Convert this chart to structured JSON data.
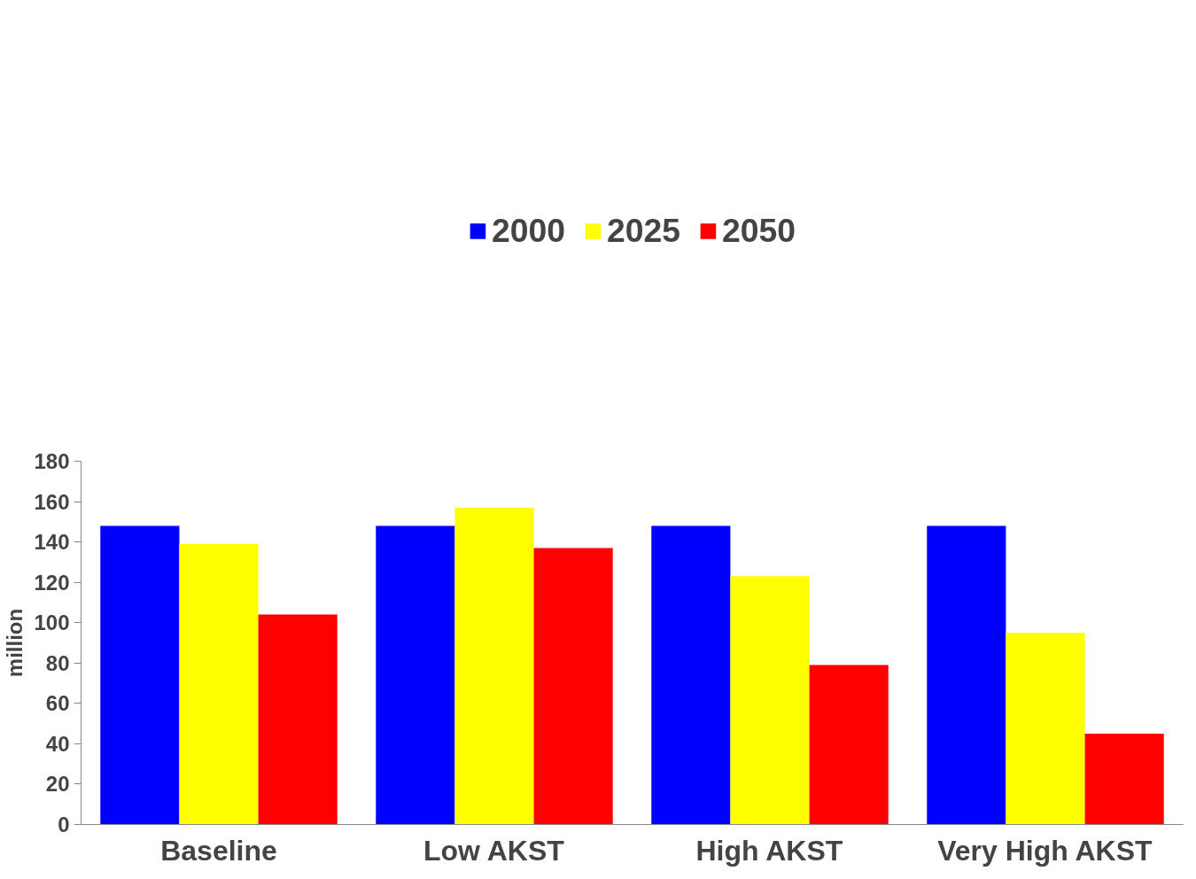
{
  "chart_data": {
    "type": "bar",
    "ylabel": "million",
    "categories": [
      "Baseline",
      "Low AKST",
      "High AKST",
      "Very High AKST"
    ],
    "series": [
      {
        "name": "2000",
        "color": "#0000ff",
        "values": [
          148,
          148,
          148,
          148
        ]
      },
      {
        "name": "2025",
        "color": "#ffff00",
        "values": [
          139,
          157,
          123,
          95
        ]
      },
      {
        "name": "2050",
        "color": "#ff0000",
        "values": [
          104,
          137,
          79,
          45
        ]
      }
    ],
    "ylim": [
      0,
      180
    ],
    "yticks": [
      0,
      20,
      40,
      60,
      80,
      100,
      120,
      140,
      160,
      180
    ],
    "grid": false,
    "legend": "top"
  }
}
